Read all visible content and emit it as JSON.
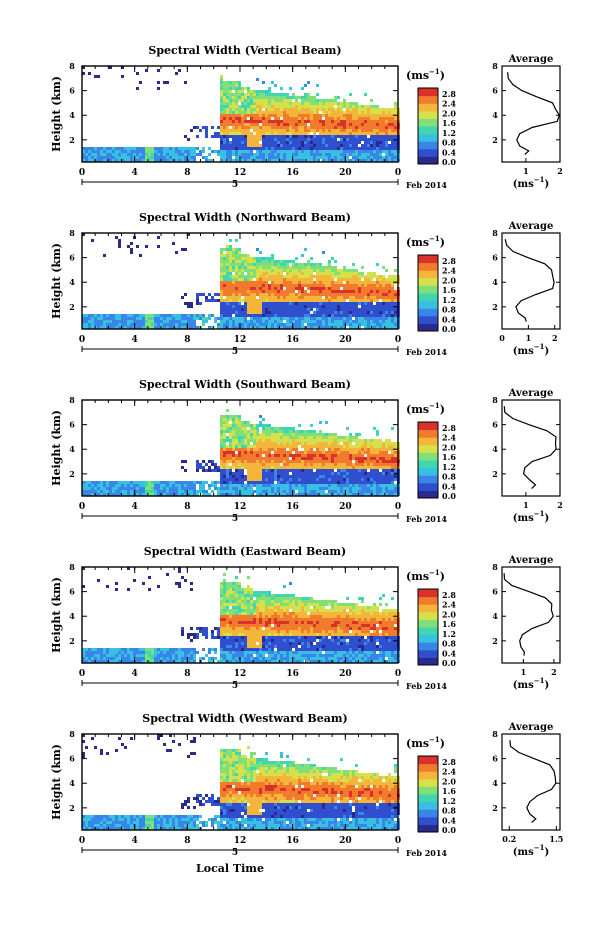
{
  "figure": {
    "xlabel": "Local Time",
    "date_label": "Feb 2014",
    "unit_label": "(ms",
    "unit_exp": "−1",
    "avg_title": "Average",
    "colorbar_ticks": [
      "2.8",
      "2.4",
      "2.0",
      "1.6",
      "1.2",
      "0.8",
      "0.4",
      "0.0"
    ],
    "colors": {
      "colormap": [
        "#2a2a8c",
        "#2f4fcf",
        "#3a86e8",
        "#38c0e0",
        "#3fd6b0",
        "#7fe07a",
        "#d6e04a",
        "#f4b63a",
        "#f27a2c",
        "#d8322a"
      ]
    }
  },
  "chart_data": [
    {
      "type": "heatmap",
      "title": "Spectral Width (Vertical Beam)",
      "ylabel": "Height (km)",
      "x_ticks": [
        "0",
        "4",
        "8",
        "12",
        "16",
        "20",
        "0"
      ],
      "day_tick": "5",
      "y_ticks": [
        "8",
        "6",
        "4",
        "2"
      ],
      "avg_x_ticks": [
        "1",
        "2"
      ],
      "avg_xlim": [
        0.3,
        2.0
      ],
      "avg_profile": [
        [
          0.95,
          0.8
        ],
        [
          1.1,
          1.1
        ],
        [
          0.8,
          1.5
        ],
        [
          0.75,
          2.0
        ],
        [
          0.8,
          2.5
        ],
        [
          1.2,
          3.0
        ],
        [
          1.9,
          3.5
        ],
        [
          2.0,
          4.0
        ],
        [
          1.85,
          4.5
        ],
        [
          1.8,
          5.0
        ],
        [
          1.3,
          5.5
        ],
        [
          0.9,
          6.0
        ],
        [
          0.6,
          6.5
        ],
        [
          0.5,
          7.0
        ],
        [
          0.45,
          7.5
        ]
      ]
    },
    {
      "type": "heatmap",
      "title": "Spectral Width (Northward Beam)",
      "ylabel": "Height (km)",
      "x_ticks": [
        "0",
        "4",
        "8",
        "12",
        "16",
        "20",
        "0"
      ],
      "day_tick": "5",
      "y_ticks": [
        "8",
        "6",
        "4",
        "2"
      ],
      "avg_x_ticks": [
        "0",
        "1",
        "2"
      ],
      "avg_xlim": [
        0.0,
        2.2
      ],
      "avg_profile": [
        [
          0.9,
          0.8
        ],
        [
          0.9,
          1.1
        ],
        [
          0.6,
          1.5
        ],
        [
          0.55,
          2.0
        ],
        [
          0.7,
          2.5
        ],
        [
          1.3,
          3.0
        ],
        [
          1.9,
          3.5
        ],
        [
          2.0,
          4.0
        ],
        [
          1.9,
          4.5
        ],
        [
          1.9,
          5.0
        ],
        [
          1.6,
          5.5
        ],
        [
          1.0,
          6.0
        ],
        [
          0.4,
          6.5
        ],
        [
          0.2,
          7.0
        ],
        [
          0.1,
          7.5
        ]
      ]
    },
    {
      "type": "heatmap",
      "title": "Spectral Width (Southward Beam)",
      "ylabel": "Height (km)",
      "x_ticks": [
        "0",
        "4",
        "8",
        "12",
        "16",
        "20",
        "0"
      ],
      "day_tick": "5",
      "y_ticks": [
        "8",
        "6",
        "4",
        "2"
      ],
      "avg_x_ticks": [
        "1",
        "2"
      ],
      "avg_xlim": [
        0.3,
        2.0
      ],
      "avg_profile": [
        [
          1.15,
          0.8
        ],
        [
          1.3,
          1.1
        ],
        [
          1.1,
          1.5
        ],
        [
          0.95,
          2.0
        ],
        [
          0.95,
          2.5
        ],
        [
          1.2,
          3.0
        ],
        [
          1.7,
          3.5
        ],
        [
          1.9,
          4.0
        ],
        [
          1.85,
          4.5
        ],
        [
          1.9,
          5.0
        ],
        [
          1.6,
          5.5
        ],
        [
          1.1,
          6.0
        ],
        [
          0.6,
          6.5
        ],
        [
          0.4,
          7.0
        ],
        [
          0.35,
          7.5
        ]
      ]
    },
    {
      "type": "heatmap",
      "title": "Spectral Width (Eastward Beam)",
      "ylabel": "Height (km)",
      "x_ticks": [
        "0",
        "4",
        "8",
        "12",
        "16",
        "20",
        "0"
      ],
      "day_tick": "5",
      "y_ticks": [
        "8",
        "6",
        "4",
        "2"
      ],
      "avg_x_ticks": [
        "1",
        "2"
      ],
      "avg_xlim": [
        0.3,
        2.2
      ],
      "avg_profile": [
        [
          1.0,
          0.8
        ],
        [
          1.05,
          1.1
        ],
        [
          0.9,
          1.5
        ],
        [
          0.9,
          2.0
        ],
        [
          0.95,
          2.5
        ],
        [
          1.3,
          3.0
        ],
        [
          1.8,
          3.5
        ],
        [
          2.0,
          4.0
        ],
        [
          1.9,
          4.5
        ],
        [
          1.95,
          5.0
        ],
        [
          1.7,
          5.5
        ],
        [
          1.2,
          6.0
        ],
        [
          0.6,
          6.5
        ],
        [
          0.4,
          7.0
        ],
        [
          0.35,
          7.5
        ]
      ]
    },
    {
      "type": "heatmap",
      "title": "Spectral Width (Westward Beam)",
      "ylabel": "Height (km)",
      "x_ticks": [
        "0",
        "4",
        "8",
        "12",
        "16",
        "20",
        "0"
      ],
      "day_tick": "5",
      "y_ticks": [
        "8",
        "6",
        "4",
        "2"
      ],
      "avg_x_ticks": [
        "0.2",
        "1.5"
      ],
      "avg_xlim": [
        0.0,
        1.6
      ],
      "avg_profile": [
        [
          0.8,
          0.8
        ],
        [
          0.95,
          1.1
        ],
        [
          0.75,
          1.5
        ],
        [
          0.7,
          2.0
        ],
        [
          0.75,
          2.5
        ],
        [
          1.0,
          3.0
        ],
        [
          1.35,
          3.5
        ],
        [
          1.5,
          4.0
        ],
        [
          1.45,
          4.5
        ],
        [
          1.45,
          5.0
        ],
        [
          1.3,
          5.5
        ],
        [
          0.9,
          6.0
        ],
        [
          0.45,
          6.5
        ],
        [
          0.25,
          7.0
        ],
        [
          0.2,
          7.5
        ]
      ]
    }
  ]
}
